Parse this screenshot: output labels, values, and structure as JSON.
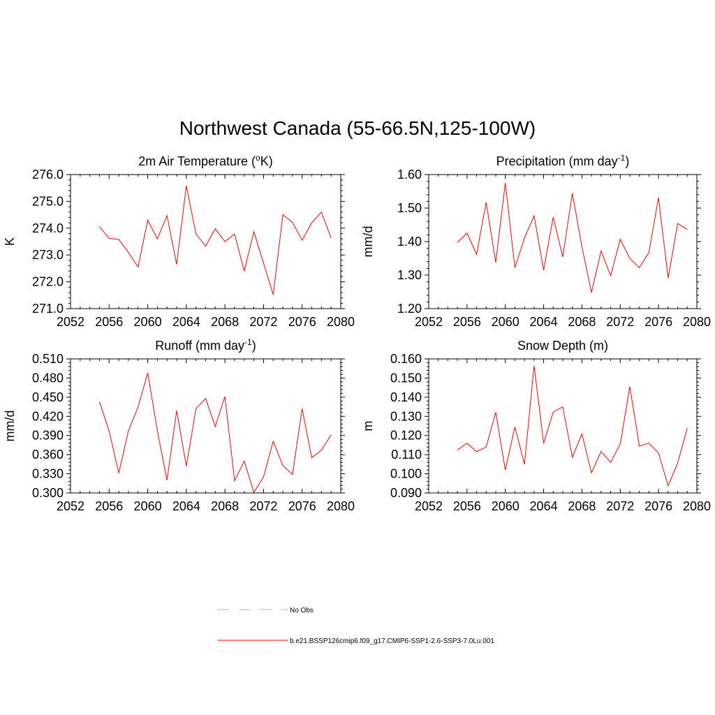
{
  "title": "Northwest Canada (55-66.5N,125-100W)",
  "chart_data": [
    {
      "type": "line",
      "title": "2m Air Temperature (",
      "title_sup": "o",
      "title_after": "K)",
      "ylabel": "K",
      "xlim": [
        2052,
        2080
      ],
      "xticks": [
        2052,
        2056,
        2060,
        2064,
        2068,
        2072,
        2076,
        2080
      ],
      "ylim": [
        271.0,
        276.0
      ],
      "yticks": [
        "271.0",
        "272.0",
        "273.0",
        "274.0",
        "275.0",
        "276.0"
      ],
      "x": [
        2055,
        2056,
        2057,
        2058,
        2059,
        2060,
        2061,
        2062,
        2063,
        2064,
        2065,
        2066,
        2067,
        2068,
        2069,
        2070,
        2071,
        2072,
        2073,
        2074,
        2075,
        2076,
        2077,
        2078,
        2079
      ],
      "series": [
        {
          "name": "b.e21.BSSP126cmip6.f09_g17.CMIP6-SSP1-2.6-SSP3-7.0Lu.001",
          "color": "#ff0000",
          "values": [
            274.05,
            273.62,
            273.58,
            273.1,
            272.55,
            274.3,
            273.6,
            274.47,
            272.65,
            275.58,
            273.78,
            273.33,
            273.98,
            273.5,
            273.78,
            272.4,
            273.87,
            272.7,
            271.52,
            274.5,
            274.22,
            273.55,
            274.2,
            274.6,
            273.63
          ]
        }
      ]
    },
    {
      "type": "line",
      "title": "Precipitation (mm day",
      "title_sup": "-1",
      "title_after": ")",
      "ylabel": "mm/d",
      "xlim": [
        2052,
        2080
      ],
      "xticks": [
        2052,
        2056,
        2060,
        2064,
        2068,
        2072,
        2076,
        2080
      ],
      "ylim": [
        1.2,
        1.6
      ],
      "yticks": [
        "1.20",
        "1.30",
        "1.40",
        "1.50",
        "1.60"
      ],
      "x": [
        2055,
        2056,
        2057,
        2058,
        2059,
        2060,
        2061,
        2062,
        2063,
        2064,
        2065,
        2066,
        2067,
        2068,
        2069,
        2070,
        2071,
        2072,
        2073,
        2074,
        2075,
        2076,
        2077,
        2078,
        2079
      ],
      "series": [
        {
          "name": "b.e21.BSSP126cmip6.f09_g17.CMIP6-SSP1-2.6-SSP3-7.0Lu.001",
          "color": "#ff0000",
          "values": [
            1.397,
            1.425,
            1.362,
            1.517,
            1.338,
            1.575,
            1.322,
            1.41,
            1.477,
            1.315,
            1.473,
            1.354,
            1.544,
            1.385,
            1.248,
            1.372,
            1.298,
            1.407,
            1.35,
            1.322,
            1.368,
            1.531,
            1.291,
            1.454,
            1.436
          ]
        }
      ]
    },
    {
      "type": "line",
      "title": "Runoff (mm day",
      "title_sup": "-1",
      "title_after": ")",
      "ylabel": "mm/d",
      "xlim": [
        2052,
        2080
      ],
      "xticks": [
        2052,
        2056,
        2060,
        2064,
        2068,
        2072,
        2076,
        2080
      ],
      "ylim": [
        0.3,
        0.51
      ],
      "yticks": [
        "0.300",
        "0.330",
        "0.360",
        "0.390",
        "0.420",
        "0.450",
        "0.480",
        "0.510"
      ],
      "x": [
        2055,
        2056,
        2057,
        2058,
        2059,
        2060,
        2061,
        2062,
        2063,
        2064,
        2065,
        2066,
        2067,
        2068,
        2069,
        2070,
        2071,
        2072,
        2073,
        2074,
        2075,
        2076,
        2077,
        2078,
        2079
      ],
      "series": [
        {
          "name": "b.e21.BSSP126cmip6.f09_g17.CMIP6-SSP1-2.6-SSP3-7.0Lu.001",
          "color": "#ff0000",
          "values": [
            0.443,
            0.397,
            0.331,
            0.397,
            0.435,
            0.488,
            0.397,
            0.32,
            0.429,
            0.342,
            0.432,
            0.448,
            0.404,
            0.451,
            0.319,
            0.35,
            0.301,
            0.325,
            0.381,
            0.343,
            0.329,
            0.432,
            0.355,
            0.367,
            0.391
          ]
        }
      ]
    },
    {
      "type": "line",
      "title": "Snow Depth (m)",
      "ylabel": "m",
      "xlim": [
        2052,
        2080
      ],
      "xticks": [
        2052,
        2056,
        2060,
        2064,
        2068,
        2072,
        2076,
        2080
      ],
      "ylim": [
        0.09,
        0.16
      ],
      "yticks": [
        "0.090",
        "0.100",
        "0.110",
        "0.120",
        "0.130",
        "0.140",
        "0.150",
        "0.160"
      ],
      "x": [
        2055,
        2056,
        2057,
        2058,
        2059,
        2060,
        2061,
        2062,
        2063,
        2064,
        2065,
        2066,
        2067,
        2068,
        2069,
        2070,
        2071,
        2072,
        2073,
        2074,
        2075,
        2076,
        2077,
        2078,
        2079
      ],
      "series": [
        {
          "name": "b.e21.BSSP126cmip6.f09_g17.CMIP6-SSP1-2.6-SSP3-7.0Lu.001",
          "color": "#ff0000",
          "values": [
            0.1125,
            0.116,
            0.1115,
            0.114,
            0.1322,
            0.102,
            0.1245,
            0.105,
            0.1563,
            0.116,
            0.1322,
            0.135,
            0.1086,
            0.1208,
            0.1005,
            0.1117,
            0.106,
            0.1155,
            0.1454,
            0.1145,
            0.116,
            0.1108,
            0.0938,
            0.1057,
            0.1238
          ]
        }
      ]
    }
  ],
  "legend": {
    "items": [
      {
        "label": "No Obs",
        "color": "#aaaaee",
        "style": "dashed"
      },
      {
        "label": "b.e21.BSSP126cmip6.f09_g17.CMIP6-SSP1-2.6-SSP3-7.0Lu.001",
        "color": "#ff0000",
        "style": "solid"
      }
    ]
  }
}
